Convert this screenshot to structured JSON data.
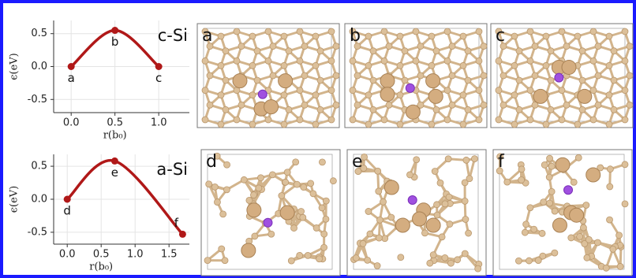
{
  "chart_data": [
    {
      "type": "line",
      "annotation": "c-Si",
      "x": [
        0,
        0.5,
        1.0
      ],
      "values": [
        0,
        0.55,
        0
      ],
      "point_labels": [
        "a",
        "b",
        "c"
      ],
      "color": "#b01818",
      "xlabel": "r(b₀)",
      "ylabel": "ϵ(eV)",
      "xlim": [
        -0.2,
        1.35
      ],
      "ylim": [
        -0.7,
        0.7
      ],
      "xticks": [
        {
          "value": 0,
          "label": "0.0"
        },
        0.5,
        {
          "value": 1,
          "label": "1.0"
        }
      ],
      "yticks": [
        -0.5,
        {
          "value": 0,
          "label": "0.0"
        },
        0.5
      ],
      "grid": true
    },
    {
      "type": "line",
      "annotation": "a-Si",
      "x": [
        0,
        0.7,
        1.7
      ],
      "values": [
        0,
        0.58,
        -0.53
      ],
      "point_labels": [
        "d",
        "e",
        "f"
      ],
      "color": "#b01818",
      "xlabel": "r(b₀)",
      "ylabel": "ϵ(eV)",
      "xlim": [
        -0.2,
        1.8
      ],
      "ylim": [
        -0.68,
        0.68
      ],
      "xticks": [
        {
          "value": 0,
          "label": "0.0"
        },
        0.5,
        {
          "value": 1,
          "label": "1.0"
        },
        1.5
      ],
      "yticks": [
        -0.5,
        {
          "value": 0,
          "label": "0.0"
        },
        0.5
      ],
      "grid": true
    }
  ],
  "structures": [
    "a",
    "b",
    "c",
    "d",
    "e",
    "f"
  ]
}
